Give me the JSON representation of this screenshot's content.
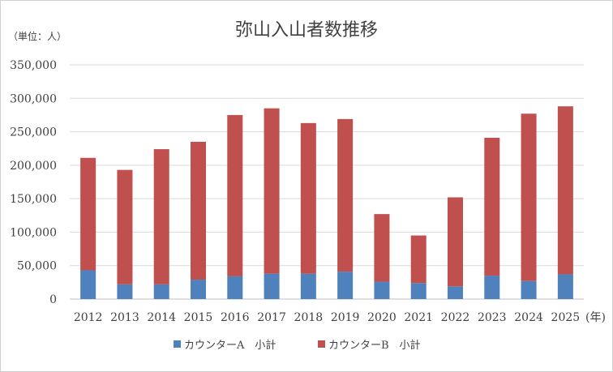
{
  "chart_data": {
    "type": "bar",
    "stacked": true,
    "title": "弥山入山者数推移",
    "unit_label": "（単位：人）",
    "x_unit_label": "(年)",
    "categories": [
      "2012",
      "2013",
      "2014",
      "2015",
      "2016",
      "2017",
      "2018",
      "2019",
      "2020",
      "2021",
      "2022",
      "2023",
      "2024",
      "2025"
    ],
    "series": [
      {
        "name": "カウンターA　小計",
        "color": "#4f81bd",
        "values": [
          43000,
          22000,
          22000,
          29000,
          34000,
          38000,
          38000,
          41000,
          26000,
          24000,
          19000,
          35000,
          27000,
          37000
        ]
      },
      {
        "name": "カウンターB　小計",
        "color": "#c0504d",
        "values": [
          168000,
          171000,
          202000,
          206000,
          241000,
          247000,
          225000,
          228000,
          101000,
          71000,
          133000,
          206000,
          250000,
          251000
        ]
      }
    ],
    "ylim": [
      0,
      350000
    ],
    "yticks": [
      0,
      50000,
      100000,
      150000,
      200000,
      250000,
      300000,
      350000
    ],
    "ytick_labels": [
      "0",
      "50,000",
      "100,000",
      "150,000",
      "200,000",
      "250,000",
      "300,000",
      "350,000"
    ],
    "grid": true,
    "legend_position": "bottom"
  }
}
